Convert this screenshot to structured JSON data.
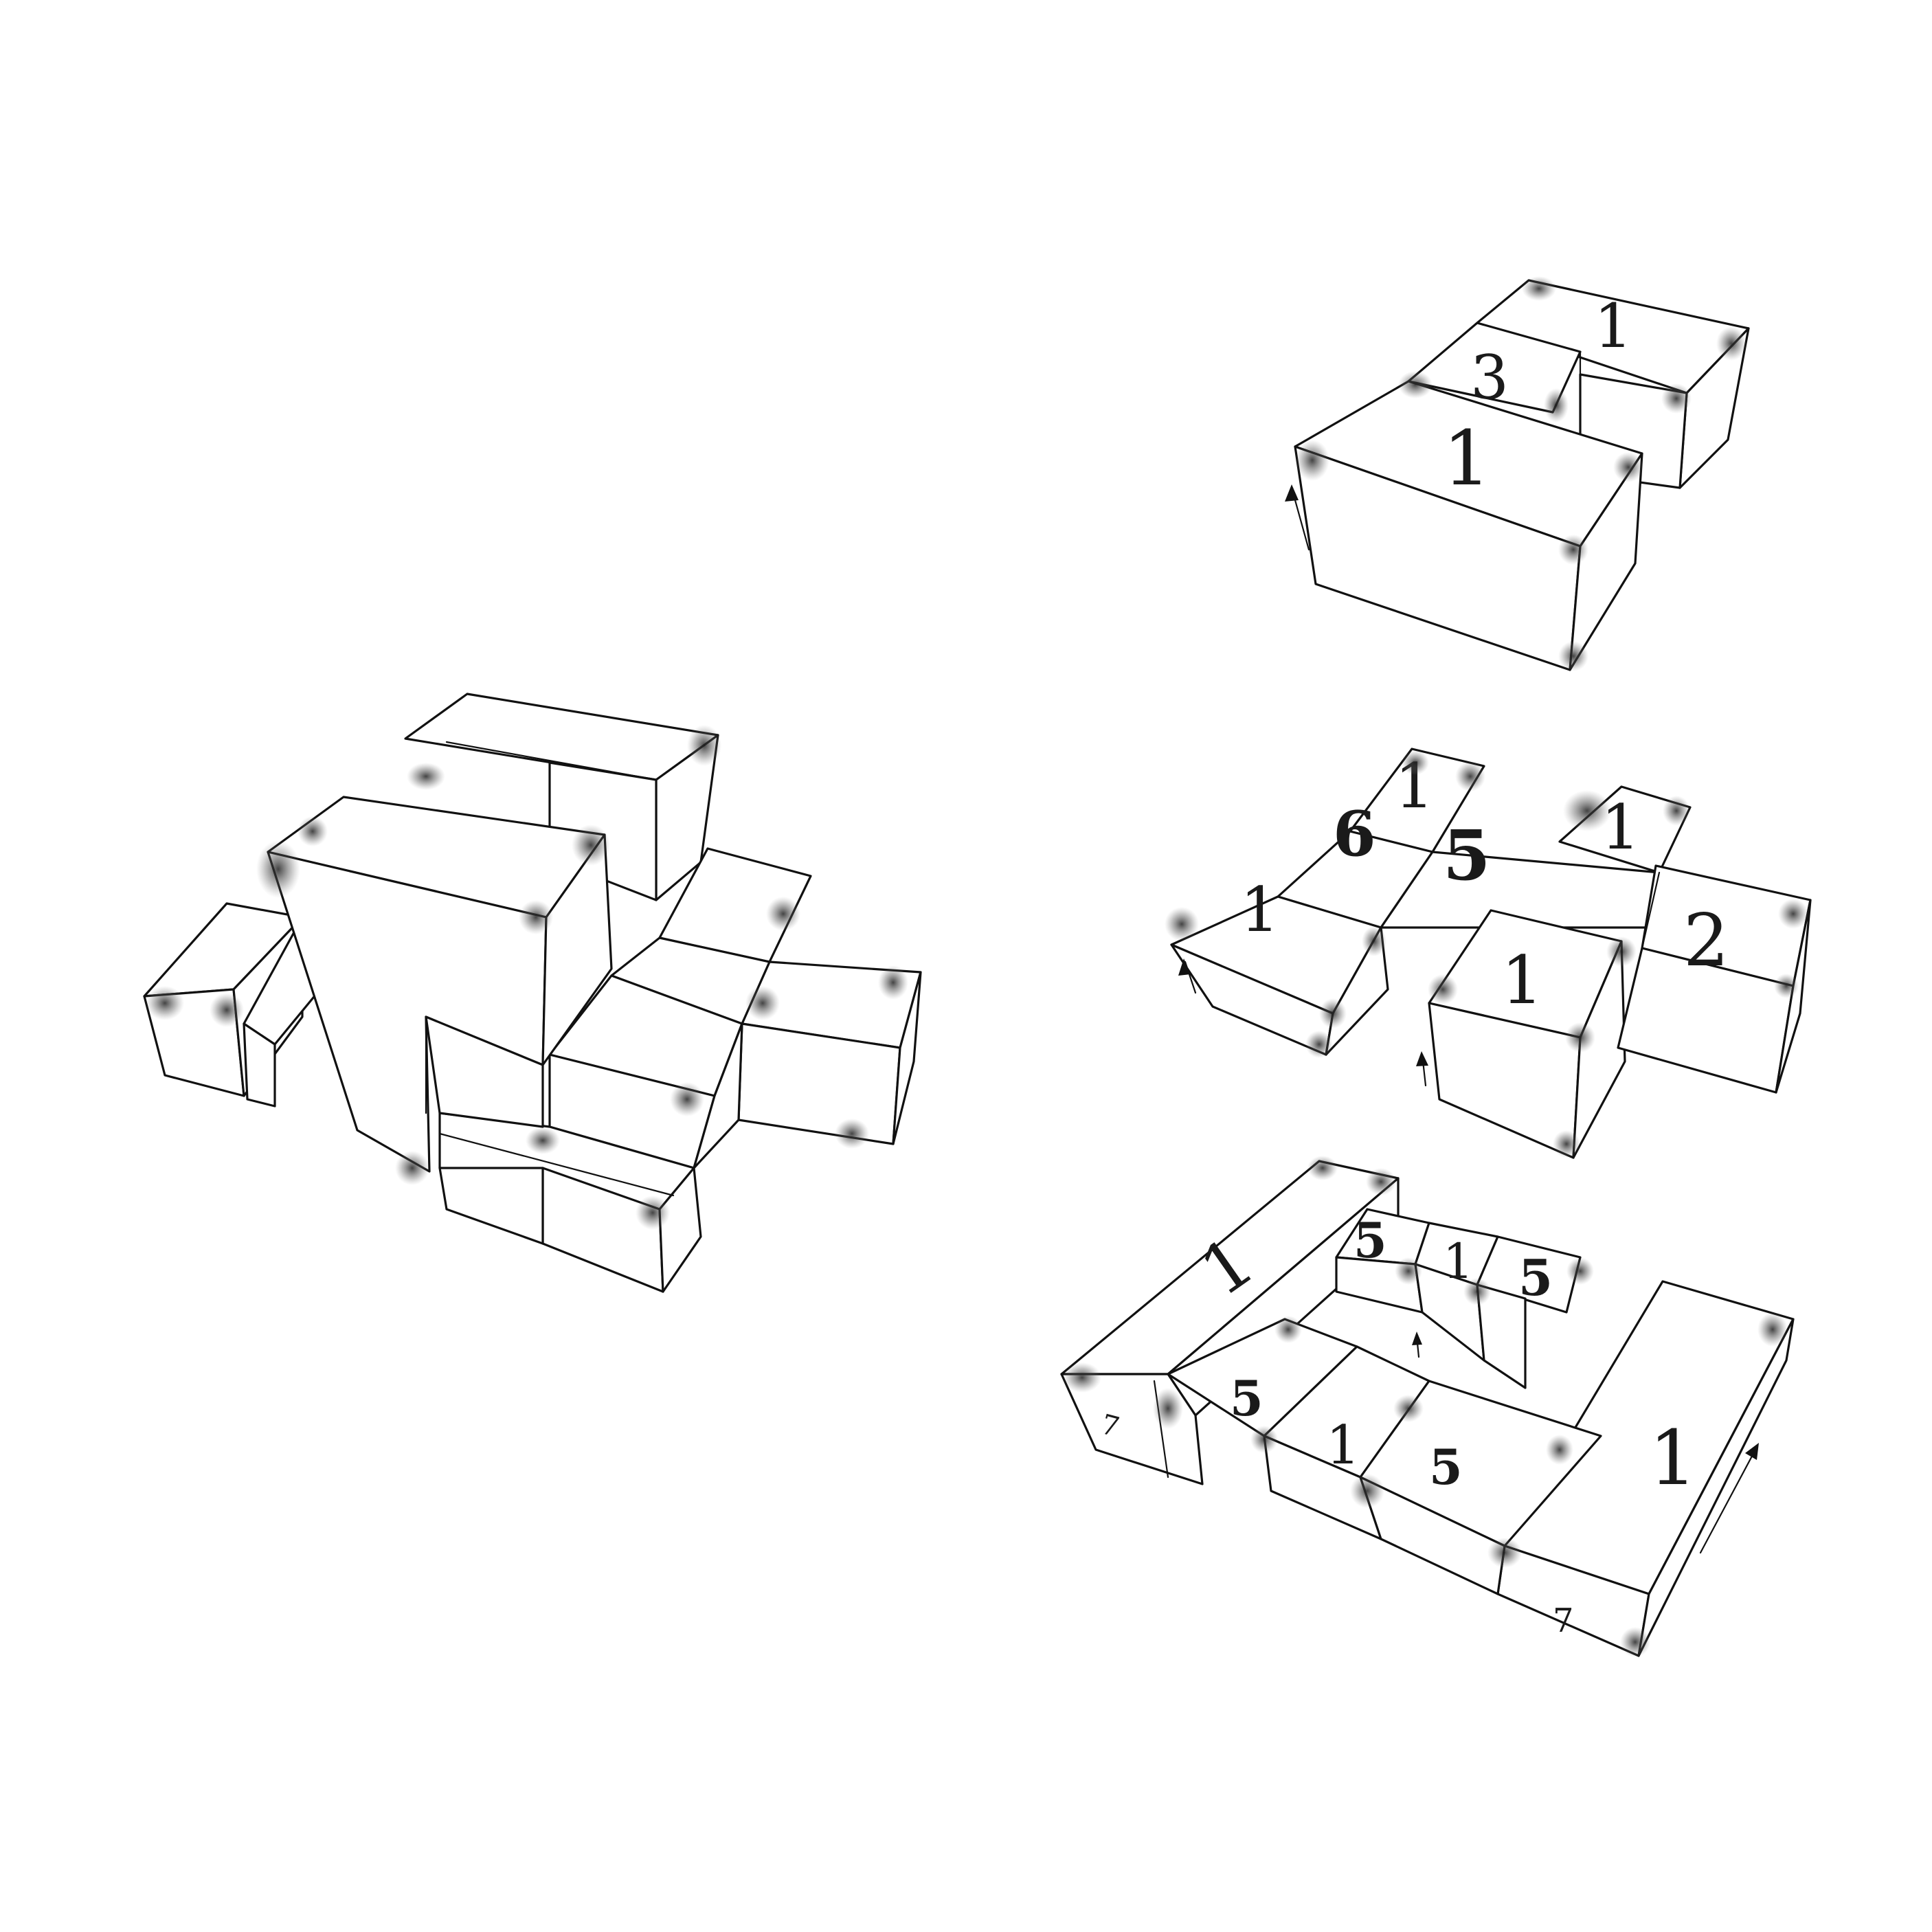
{
  "diagram": {
    "assembled_figure": {},
    "layer_top": {
      "labels": [
        "1",
        "3",
        "1"
      ]
    },
    "layer_middle": {
      "labels": [
        "1",
        "6",
        "5",
        "1",
        "1",
        "1",
        "2"
      ]
    },
    "layer_bottom": {
      "labels": [
        "1",
        "5",
        "1",
        "5",
        "5",
        "1",
        "5",
        "1",
        "7",
        "7"
      ]
    }
  }
}
